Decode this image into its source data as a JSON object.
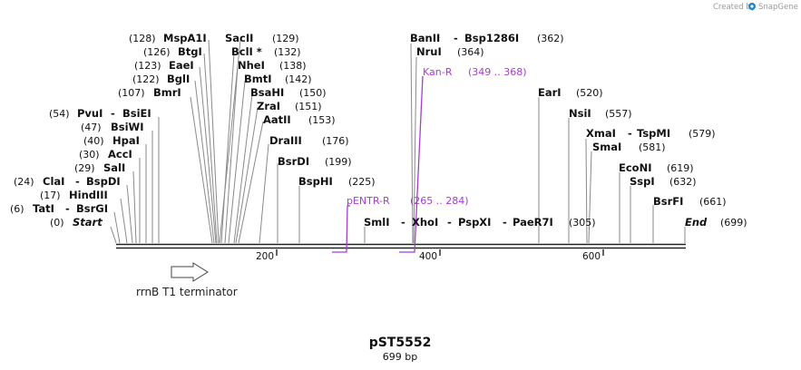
{
  "credit": {
    "text": "Created by",
    "brand": "SnapGene"
  },
  "title": {
    "name": "pST5552",
    "length_label": "699 bp"
  },
  "ruler": {
    "ticks": [
      "200",
      "400",
      "600"
    ]
  },
  "feature": {
    "name": "rrnB T1 terminator"
  },
  "primers": [
    {
      "name": "pENTR-R",
      "range": "(265 .. 284)"
    },
    {
      "name": "Kan-R",
      "range": "(349 .. 368)"
    }
  ],
  "enzymes": [
    {
      "pos": "(128)",
      "parts": [
        "MspA1I"
      ]
    },
    {
      "pos": "(126)",
      "parts": [
        "BtgI"
      ]
    },
    {
      "pos": "(123)",
      "parts": [
        "EaeI"
      ]
    },
    {
      "pos": "(122)",
      "parts": [
        "BglI"
      ]
    },
    {
      "pos": "(107)",
      "parts": [
        "BmrI"
      ]
    },
    {
      "pos": "(54)",
      "parts": [
        "PvuI",
        "BsiEI"
      ]
    },
    {
      "pos": "(47)",
      "parts": [
        "BsiWI"
      ]
    },
    {
      "pos": "(40)",
      "parts": [
        "HpaI"
      ]
    },
    {
      "pos": "(30)",
      "parts": [
        "AccI"
      ]
    },
    {
      "pos": "(29)",
      "parts": [
        "SalI"
      ]
    },
    {
      "pos": "(24)",
      "parts": [
        "ClaI",
        "BspDI"
      ]
    },
    {
      "pos": "(17)",
      "parts": [
        "HindIII"
      ]
    },
    {
      "pos": "(6)",
      "parts": [
        "TatI",
        "BsrGI"
      ]
    },
    {
      "pos": "(0)",
      "parts": [
        "Start"
      ]
    },
    {
      "pos": "(129)",
      "parts": [
        "SacII"
      ]
    },
    {
      "pos": "(132)",
      "parts": [
        "BclI *"
      ]
    },
    {
      "pos": "(138)",
      "parts": [
        "NheI"
      ]
    },
    {
      "pos": "(142)",
      "parts": [
        "BmtI"
      ]
    },
    {
      "pos": "(150)",
      "parts": [
        "BsaHI"
      ]
    },
    {
      "pos": "(151)",
      "parts": [
        "ZraI"
      ]
    },
    {
      "pos": "(153)",
      "parts": [
        "AatII"
      ]
    },
    {
      "pos": "(176)",
      "parts": [
        "DraIII"
      ]
    },
    {
      "pos": "(199)",
      "parts": [
        "BsrDI"
      ]
    },
    {
      "pos": "(225)",
      "parts": [
        "BspHI"
      ]
    },
    {
      "pos": "(305)",
      "parts": [
        "SmlI",
        "XhoI",
        "PspXI",
        "PaeR7I"
      ]
    },
    {
      "pos": "(362)",
      "parts": [
        "BanII",
        "Bsp1286I"
      ]
    },
    {
      "pos": "(364)",
      "parts": [
        "NruI"
      ]
    },
    {
      "pos": "(520)",
      "parts": [
        "EarI"
      ]
    },
    {
      "pos": "(557)",
      "parts": [
        "NsiI"
      ]
    },
    {
      "pos": "(579)",
      "parts": [
        "XmaI",
        "TspMI"
      ]
    },
    {
      "pos": "(581)",
      "parts": [
        "SmaI"
      ]
    },
    {
      "pos": "(619)",
      "parts": [
        "EcoNI"
      ]
    },
    {
      "pos": "(632)",
      "parts": [
        "SspI"
      ]
    },
    {
      "pos": "(661)",
      "parts": [
        "BsrFI"
      ]
    },
    {
      "pos": "(699)",
      "parts": [
        "End"
      ]
    }
  ]
}
